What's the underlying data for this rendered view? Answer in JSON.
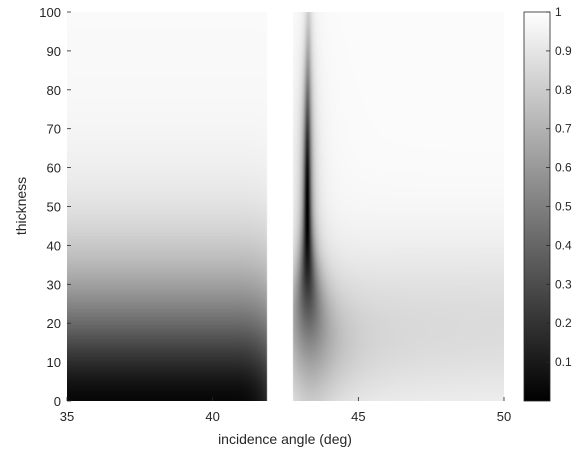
{
  "chart_data": {
    "type": "heatmap",
    "title": "",
    "xlabel": "incidence angle (deg)",
    "ylabel": "thickness",
    "xlim": [
      35,
      50
    ],
    "ylim": [
      0,
      100
    ],
    "xticks": [
      35,
      40,
      45,
      50
    ],
    "yticks": [
      0,
      10,
      20,
      30,
      40,
      50,
      60,
      70,
      80,
      90,
      100
    ],
    "colorbar": {
      "colormap": "gray",
      "range": [
        0,
        1
      ],
      "ticks": [
        0.1,
        0.2,
        0.3,
        0.4,
        0.5,
        0.6,
        0.7,
        0.8,
        0.9,
        1
      ]
    },
    "grid": false,
    "features": [
      {
        "description": "dark region at small thickness below the critical angle",
        "x_range": [
          35,
          41.8
        ],
        "y_range": [
          0,
          60
        ],
        "min_value": 0.02
      },
      {
        "description": "bright vertical band near the critical angle",
        "x_center": 42.3,
        "value": 1.0
      },
      {
        "description": "sharp dark resonance dip",
        "x_center": 43.3,
        "y_range": [
          30,
          100
        ],
        "min_value": 0.0,
        "min_at_y": 50
      },
      {
        "description": "faint lighter-gray lobe at large angles",
        "x_range": [
          44,
          50
        ],
        "y_range": [
          0,
          55
        ],
        "min_value": 0.87
      }
    ]
  }
}
